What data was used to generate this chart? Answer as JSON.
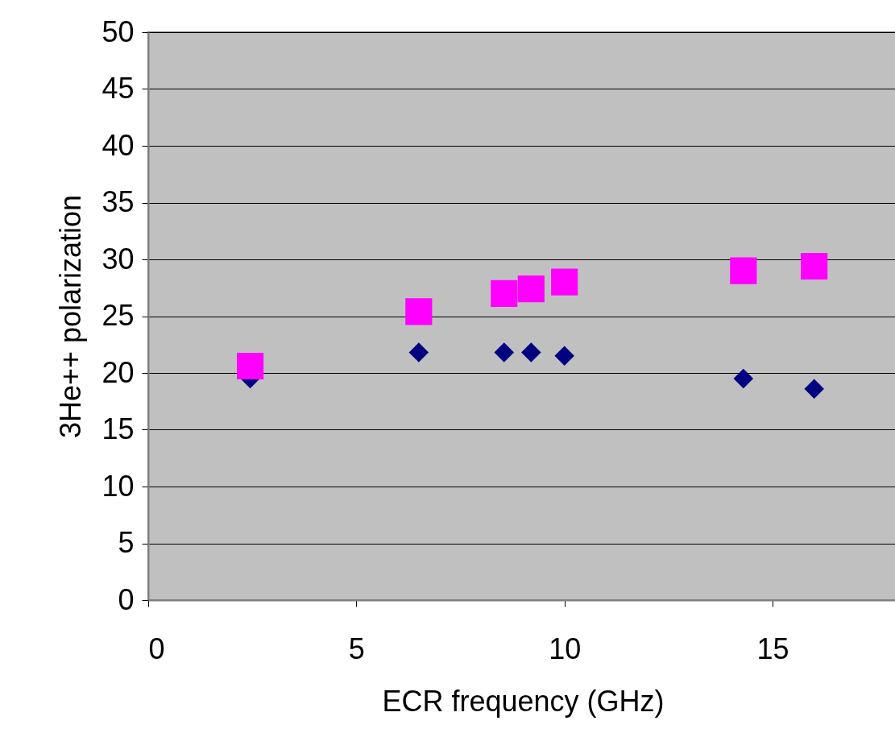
{
  "chart_data": {
    "type": "scatter",
    "xlabel": "ECR frequency (GHz)",
    "ylabel": "3He++ polarization",
    "xlim": [
      0,
      18
    ],
    "xticks": [
      0,
      5,
      10,
      15
    ],
    "ylim": [
      0,
      50
    ],
    "yticks": [
      0,
      5,
      10,
      15,
      20,
      25,
      30,
      35,
      40,
      45,
      50
    ],
    "grid": "y",
    "series": [
      {
        "color": "#000080",
        "marker": "diamond",
        "x": [
          2.45,
          6.5,
          8.55,
          9.2,
          10,
          14.3,
          16
        ],
        "values": [
          19.5,
          21.8,
          21.8,
          21.8,
          21.5,
          19.5,
          18.6
        ]
      },
      {
        "color": "#ff00ff",
        "marker": "square",
        "x": [
          2.45,
          6.5,
          8.55,
          9.2,
          10,
          14.3,
          16
        ],
        "values": [
          20.6,
          25.4,
          27.0,
          27.4,
          28.0,
          29.0,
          29.4
        ]
      }
    ]
  }
}
